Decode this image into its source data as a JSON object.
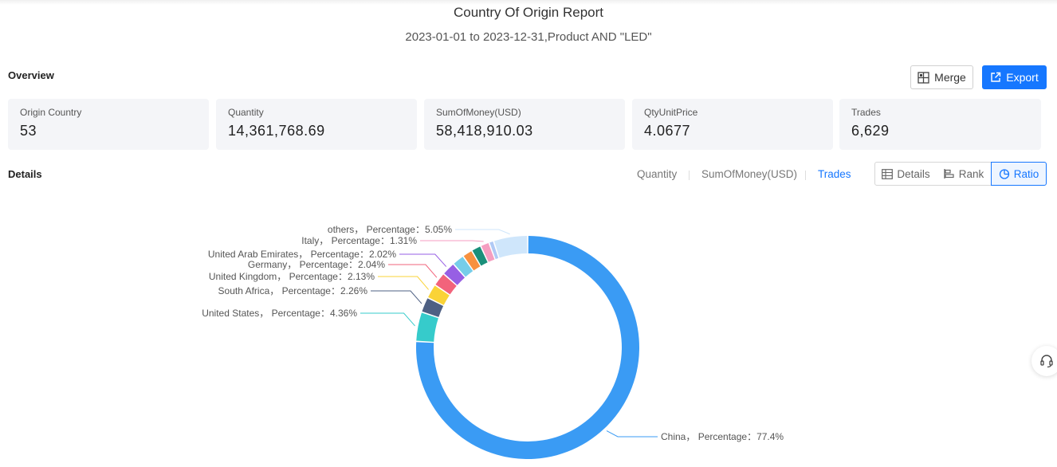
{
  "report": {
    "title": "Country Of Origin Report",
    "subtitle": "2023-01-01 to 2023-12-31,Product AND \"LED\""
  },
  "overview": {
    "label": "Overview",
    "merge_label": "Merge",
    "export_label": "Export",
    "cards": [
      {
        "label": "Origin Country",
        "value": "53"
      },
      {
        "label": "Quantity",
        "value": "14,361,768.69"
      },
      {
        "label": "SumOfMoney(USD)",
        "value": "58,418,910.03"
      },
      {
        "label": "QtyUnitPrice",
        "value": "4.0677"
      },
      {
        "label": "Trades",
        "value": "6,629"
      }
    ]
  },
  "details": {
    "label": "Details",
    "metric_tabs": [
      "Quantity",
      "SumOfMoney(USD)",
      "Trades"
    ],
    "active_metric": "Trades",
    "views": [
      "Details",
      "Rank",
      "Ratio"
    ],
    "active_view": "Ratio"
  },
  "colors": {
    "accent": "#1677ff"
  },
  "chart_data": {
    "type": "pie",
    "variant": "donut",
    "label_format": "{name}, Percentage：{value}%",
    "slices": [
      {
        "name": "China",
        "label": "China， Percentage：77.4%",
        "value": 77.4,
        "color": "#3a9bf4"
      },
      {
        "name": "United States",
        "label": "United States， Percentage：4.36%",
        "value": 4.36,
        "color": "#36cbcb"
      },
      {
        "name": "South Africa",
        "label": "South Africa， Percentage：2.26%",
        "value": 2.26,
        "color": "#4e6083"
      },
      {
        "name": "United Kingdom",
        "label": "United Kingdom， Percentage：2.13%",
        "value": 2.13,
        "color": "#fad337"
      },
      {
        "name": "Germany",
        "label": "Germany， Percentage：2.04%",
        "value": 2.04,
        "color": "#f2637b"
      },
      {
        "name": "United Arab Emirates",
        "label": "United Arab Emirates， Percentage：2.02%",
        "value": 2.02,
        "color": "#975fe4"
      },
      {
        "name": "",
        "label": "",
        "value": 1.8,
        "color": "#76cde9"
      },
      {
        "name": "",
        "label": "",
        "value": 1.5,
        "color": "#f8913f"
      },
      {
        "name": "",
        "label": "",
        "value": 1.45,
        "color": "#1a8f7a"
      },
      {
        "name": "Italy",
        "label": "Italy， Percentage：1.31%",
        "value": 1.31,
        "color": "#f59ec0"
      },
      {
        "name": "",
        "label": "",
        "value": 0.7,
        "color": "#b0c9f5"
      },
      {
        "name": "others",
        "label": "others， Percentage：5.05%",
        "value": 5.05,
        "color": "#cfe6fb"
      }
    ]
  }
}
